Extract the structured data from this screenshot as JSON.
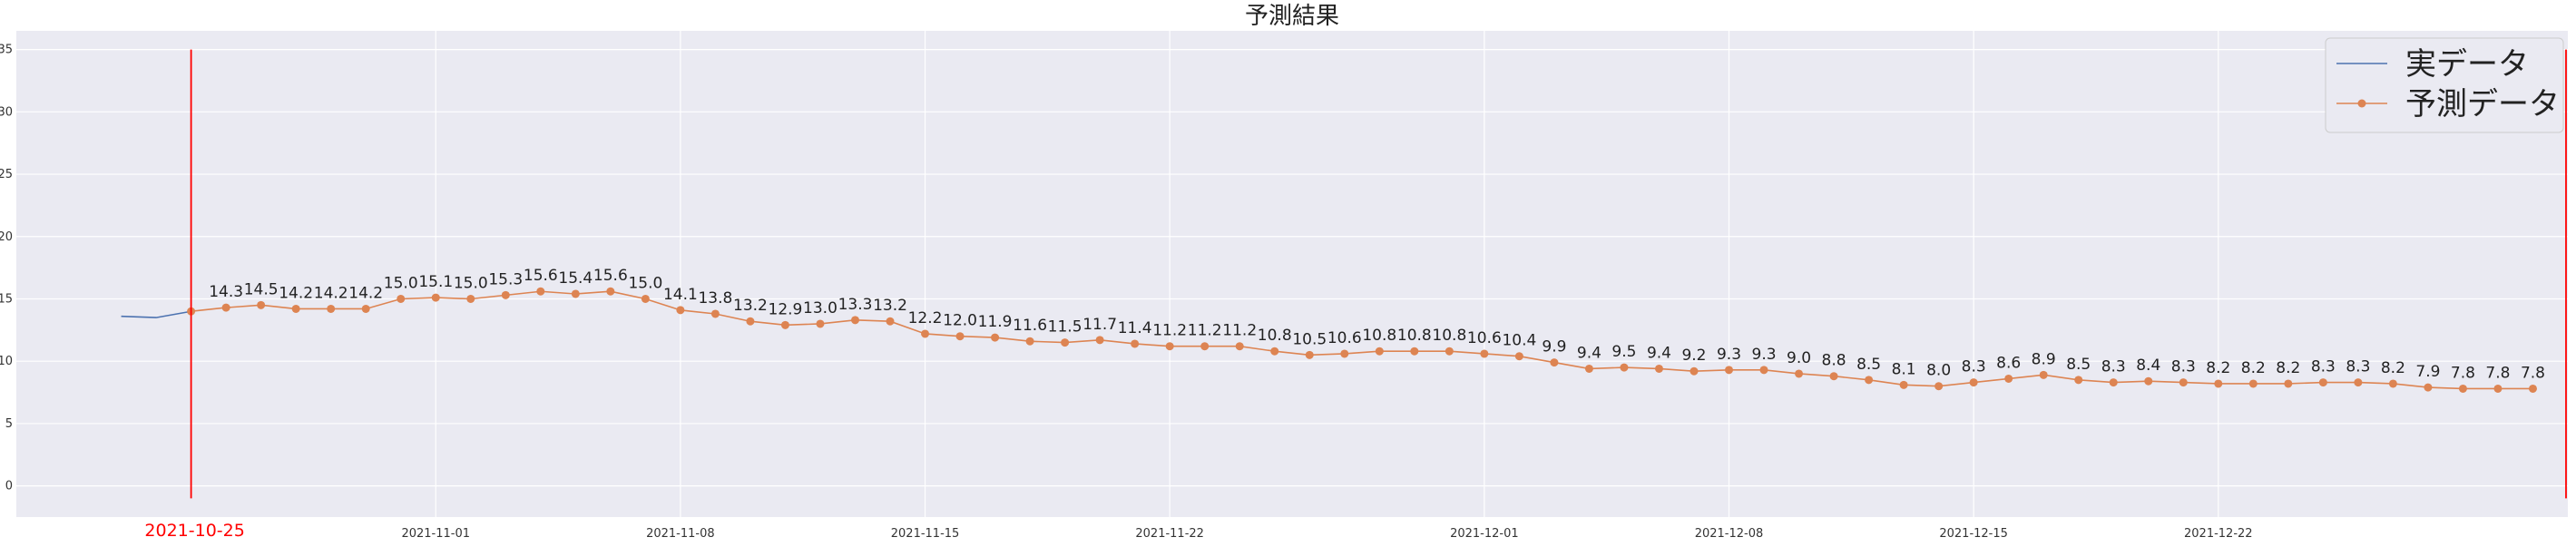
{
  "chart_data": {
    "type": "line",
    "title": "予測結果",
    "xlabel": "",
    "ylabel": "",
    "ylim": [
      -2.5,
      36.5
    ],
    "xlim": [
      "2021-10-20",
      "2022-01-01"
    ],
    "yticks": [
      0,
      5,
      10,
      15,
      20,
      25,
      30,
      35
    ],
    "xticks": [
      "2021-11-01",
      "2021-11-08",
      "2021-11-15",
      "2021-11-22",
      "2021-12-01",
      "2021-12-08",
      "2021-12-15",
      "2021-12-22"
    ],
    "grid": true,
    "legend_position": "top-right",
    "colors": {
      "actual": "#4c72b0",
      "forecast": "#dd8452",
      "marker_line": "#ff0000",
      "plot_background": "#eaeaf2",
      "grid": "#ffffff"
    },
    "vertical_markers": [
      {
        "x": "2021-10-25",
        "label": "2021-10-25",
        "y_range": [
          -1,
          35
        ]
      },
      {
        "x": "2022-01-01",
        "label": "",
        "y_range": [
          -1,
          35
        ]
      }
    ],
    "series": [
      {
        "name": "実データ",
        "style": "line",
        "x": [
          "2021-10-23",
          "2021-10-24",
          "2021-10-25"
        ],
        "values": [
          13.6,
          13.5,
          14.0
        ]
      },
      {
        "name": "予測データ",
        "style": "line-marker",
        "show_value_labels": true,
        "x": [
          "2021-10-25",
          "2021-10-26",
          "2021-10-27",
          "2021-10-28",
          "2021-10-29",
          "2021-10-30",
          "2021-10-31",
          "2021-11-01",
          "2021-11-02",
          "2021-11-03",
          "2021-11-04",
          "2021-11-05",
          "2021-11-06",
          "2021-11-07",
          "2021-11-08",
          "2021-11-09",
          "2021-11-10",
          "2021-11-11",
          "2021-11-12",
          "2021-11-13",
          "2021-11-14",
          "2021-11-15",
          "2021-11-16",
          "2021-11-17",
          "2021-11-18",
          "2021-11-19",
          "2021-11-20",
          "2021-11-21",
          "2021-11-22",
          "2021-11-23",
          "2021-11-24",
          "2021-11-25",
          "2021-11-26",
          "2021-11-27",
          "2021-11-28",
          "2021-11-29",
          "2021-11-30",
          "2021-12-01",
          "2021-12-02",
          "2021-12-03",
          "2021-12-04",
          "2021-12-05",
          "2021-12-06",
          "2021-12-07",
          "2021-12-08",
          "2021-12-09",
          "2021-12-10",
          "2021-12-11",
          "2021-12-12",
          "2021-12-13",
          "2021-12-14",
          "2021-12-15",
          "2021-12-16",
          "2021-12-17",
          "2021-12-18",
          "2021-12-19",
          "2021-12-20",
          "2021-12-21",
          "2021-12-22",
          "2021-12-23",
          "2021-12-24",
          "2021-12-25",
          "2021-12-26",
          "2021-12-27",
          "2021-12-28",
          "2021-12-29",
          "2021-12-30",
          "2021-12-31",
          "2022-01-01"
        ],
        "values": [
          14.0,
          14.3,
          14.5,
          14.2,
          14.2,
          14.2,
          15.0,
          15.1,
          15.0,
          15.3,
          15.6,
          15.4,
          15.6,
          15.0,
          14.1,
          13.8,
          13.2,
          12.9,
          13.0,
          13.3,
          13.2,
          12.2,
          12.0,
          11.9,
          11.6,
          11.5,
          11.7,
          11.4,
          11.2,
          11.2,
          11.2,
          10.8,
          10.5,
          10.6,
          10.8,
          10.8,
          10.8,
          10.6,
          10.4,
          9.9,
          9.4,
          9.5,
          9.4,
          9.2,
          9.3,
          9.3,
          9.0,
          8.8,
          8.5,
          8.1,
          8.0,
          8.3,
          8.6,
          8.9,
          8.5,
          8.3,
          8.4,
          8.3,
          8.2,
          8.2,
          8.2,
          8.3,
          8.3,
          8.2,
          7.9,
          7.8,
          7.8,
          7.8,
          null
        ],
        "labels": [
          "",
          "14.3",
          "14.5",
          "14.2",
          "14.2",
          "14.2",
          "15.0",
          "15.1",
          "15.0",
          "15.3",
          "15.6",
          "15.4",
          "15.6",
          "15.0",
          "14.1",
          "13.8",
          "13.2",
          "12.9",
          "13.0",
          "13.3",
          "13.2",
          "12.2",
          "12.0",
          "11.9",
          "11.6",
          "11.5",
          "11.7",
          "11.4",
          "11.2",
          "11.2",
          "11.2",
          "10.8",
          "10.5",
          "10.6",
          "10.8",
          "10.8",
          "10.8",
          "10.6",
          "10.4",
          "9.9",
          "9.4",
          "9.5",
          "9.4",
          "9.2",
          "9.3",
          "9.3",
          "9.0",
          "8.8",
          "8.5",
          "8.1",
          "8.0",
          "8.3",
          "8.6",
          "8.9",
          "8.5",
          "8.3",
          "8.4",
          "8.3",
          "8.2",
          "8.2",
          "8.2",
          "8.3",
          "8.3",
          "8.2",
          "7.9",
          "7.8",
          "7.8",
          "7.8",
          ""
        ]
      }
    ]
  }
}
